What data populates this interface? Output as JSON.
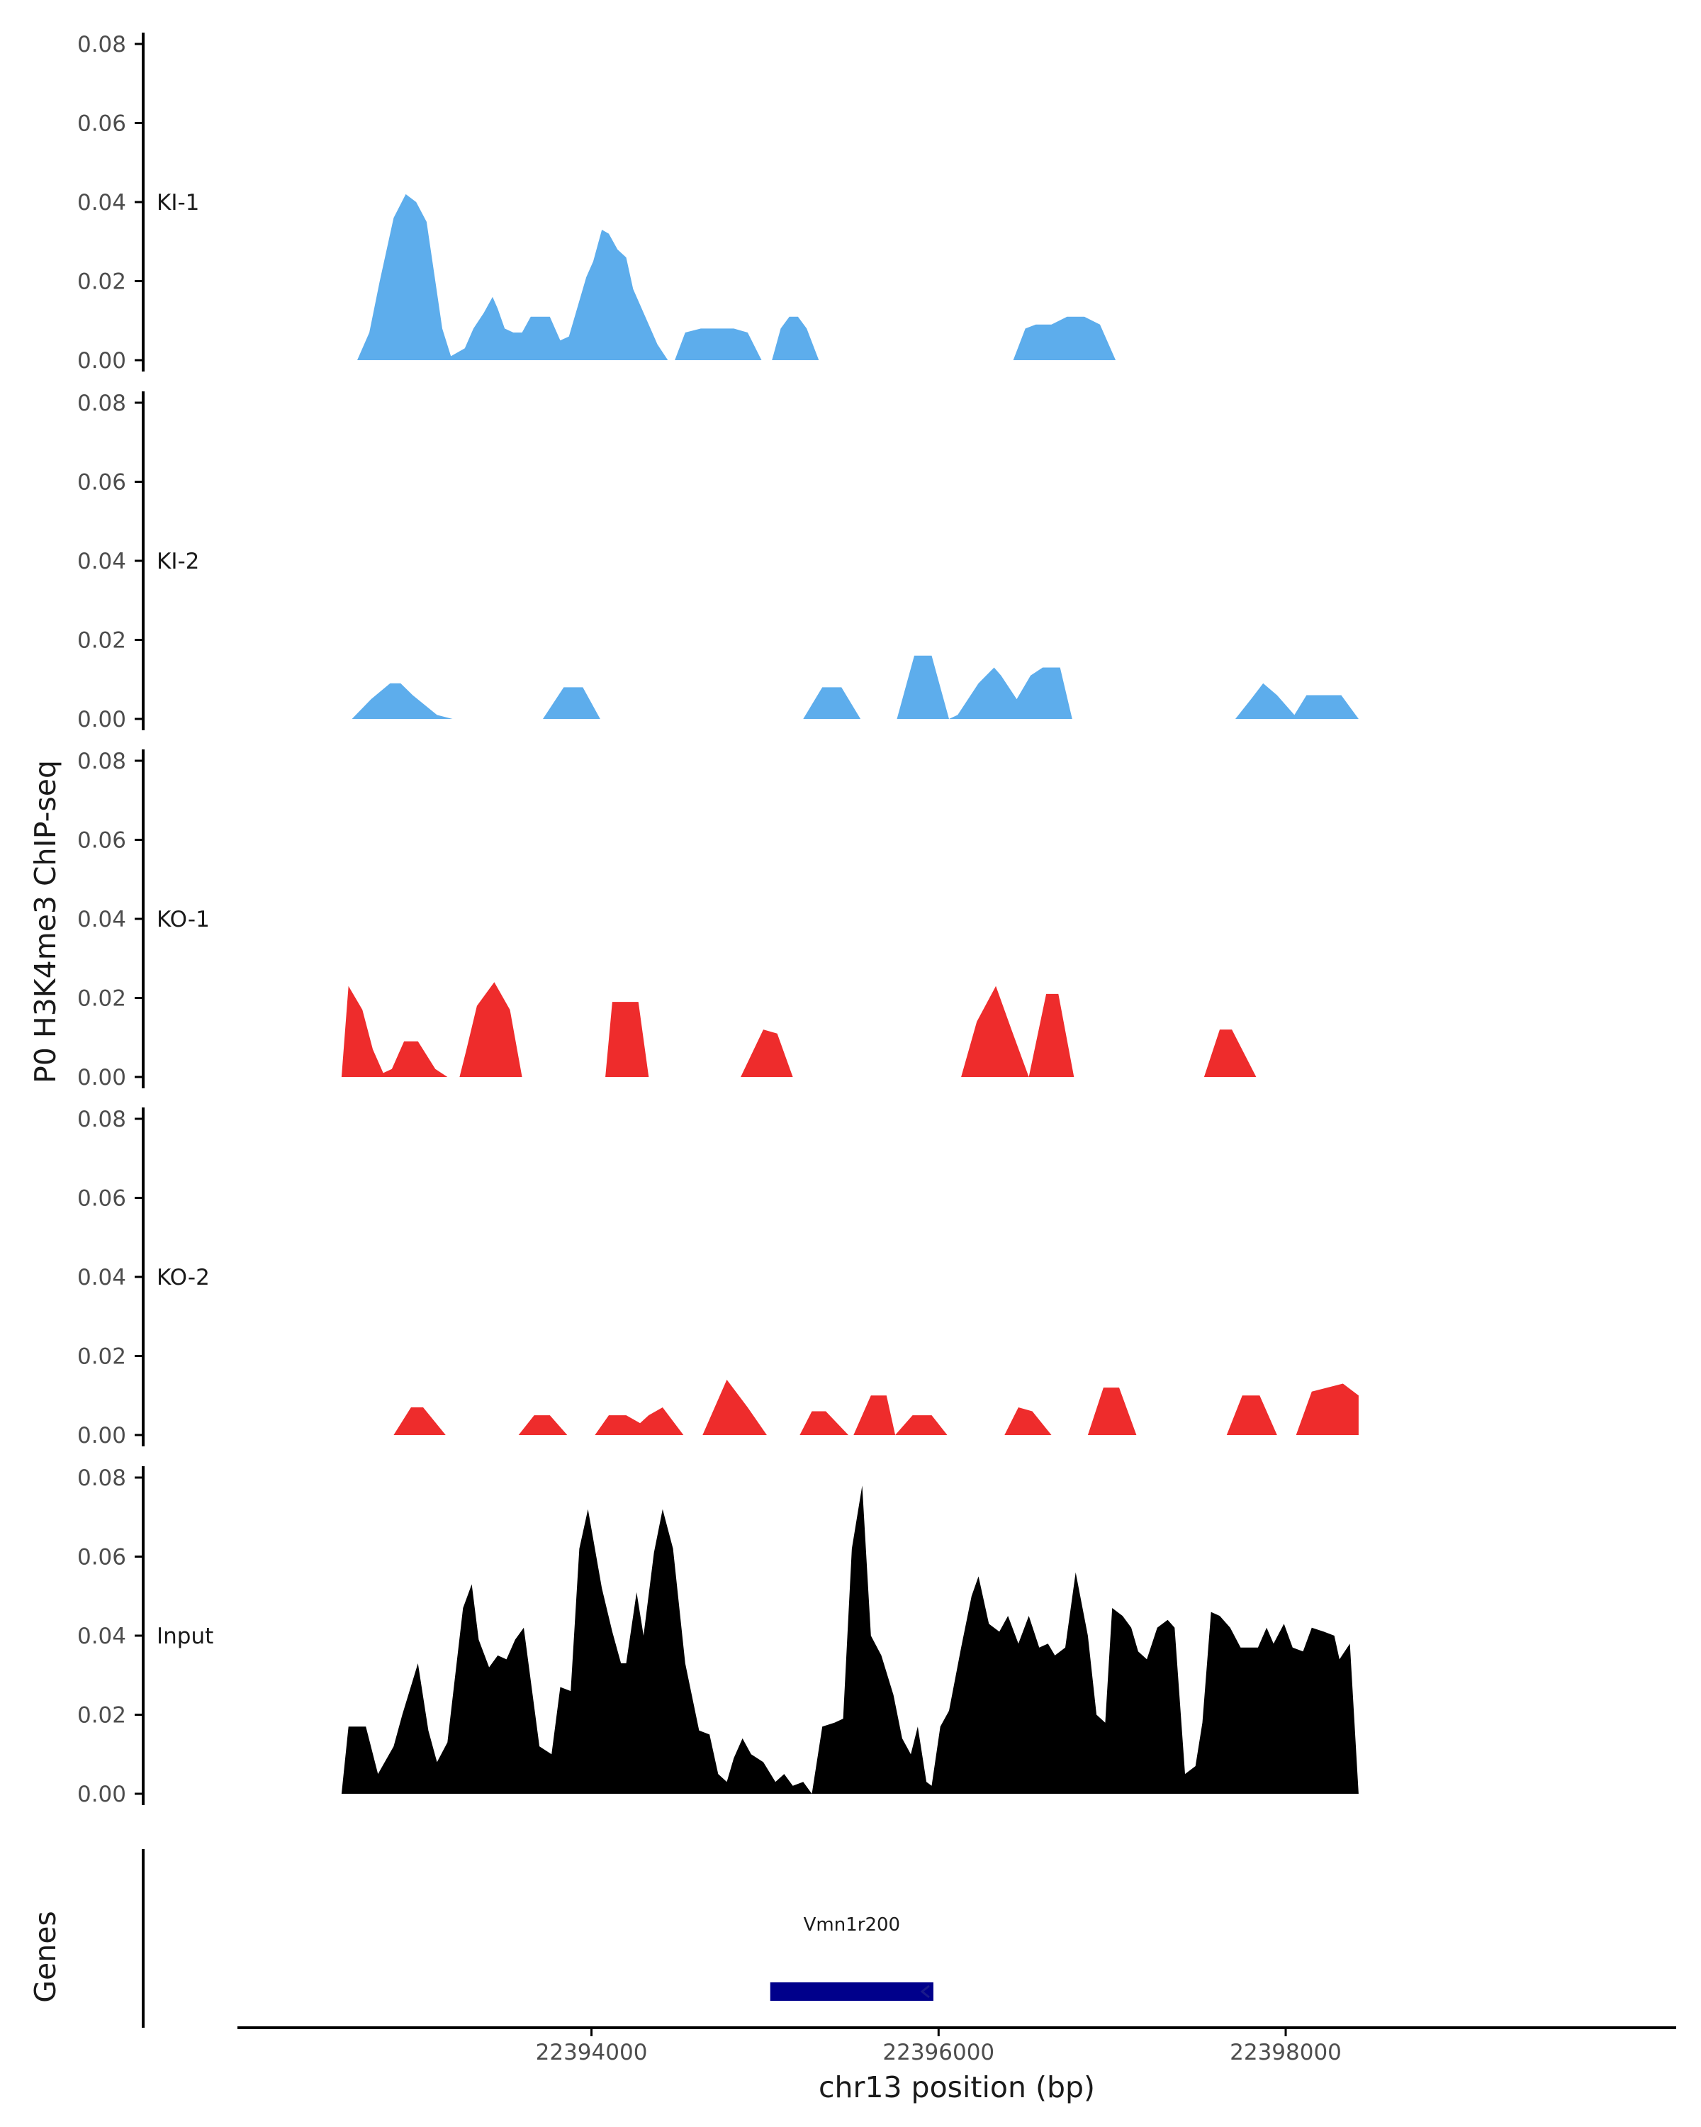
{
  "chart_data": {
    "type": "area",
    "ylabel": "P0 H3K4me3 ChIP-seq",
    "xlabel": "chr13 position (bp)",
    "xlim": [
      22391960,
      22400250
    ],
    "ylim": [
      0,
      0.08
    ],
    "yticks": [
      {
        "value": 0.0,
        "label": "0.00"
      },
      {
        "value": 0.02,
        "label": "0.02"
      },
      {
        "value": 0.04,
        "label": "0.04"
      },
      {
        "value": 0.06,
        "label": "0.06"
      },
      {
        "value": 0.08,
        "label": "0.08"
      }
    ],
    "xticks": [
      {
        "value": 22394000,
        "label": "22394000"
      },
      {
        "value": 22396000,
        "label": "22396000"
      },
      {
        "value": 22398000,
        "label": "22398000"
      }
    ],
    "colors": {
      "KI": "#5DADEC",
      "KO": "#EE2C2C",
      "Input": "#000000",
      "gene": "#00008B",
      "axis": "#000000"
    },
    "series": [
      {
        "name": "KI-1",
        "color": "#5DADEC",
        "x": [
          22392650,
          22392720,
          22392780,
          22392860,
          22392930,
          22392990,
          22393050,
          22393100,
          22393140,
          22393190,
          22393270,
          22393320,
          22393380,
          22393430,
          22393460,
          22393500,
          22393550,
          22393600,
          22393650,
          22393690,
          22393760,
          22393820,
          22393870,
          22393910,
          22393970,
          22394010,
          22394060,
          22394100,
          22394150,
          22394200,
          22394240,
          22394320,
          22394380,
          22394440,
          22394480,
          22394540,
          22394630,
          22394730,
          22394820,
          22394900,
          22394980,
          22395040,
          22395090,
          22395140,
          22395190,
          22395240,
          22395310,
          22395390,
          22396430,
          22396500,
          22396560,
          22396650,
          22396740,
          22396840,
          22396930,
          22397020
        ],
        "y": [
          0.0,
          0.007,
          0.02,
          0.036,
          0.042,
          0.04,
          0.035,
          0.02,
          0.008,
          0.001,
          0.003,
          0.008,
          0.012,
          0.016,
          0.013,
          0.008,
          0.007,
          0.007,
          0.011,
          0.011,
          0.011,
          0.005,
          0.006,
          0.012,
          0.021,
          0.025,
          0.033,
          0.032,
          0.028,
          0.026,
          0.018,
          0.01,
          0.004,
          0.0,
          0.0,
          0.007,
          0.008,
          0.008,
          0.008,
          0.007,
          0.0,
          0.0,
          0.008,
          0.011,
          0.011,
          0.008,
          0.0,
          0.0,
          0.0,
          0.008,
          0.009,
          0.009,
          0.011,
          0.011,
          0.009,
          0.0
        ]
      },
      {
        "name": "KI-2",
        "color": "#5DADEC",
        "x": [
          22392620,
          22392730,
          22392840,
          22392900,
          22392970,
          22393110,
          22393200,
          22393720,
          22393840,
          22393950,
          22394050,
          22395220,
          22395330,
          22395440,
          22395550,
          22395760,
          22395860,
          22395960,
          22396060,
          22396110,
          22396230,
          22396320,
          22396360,
          22396450,
          22396530,
          22396600,
          22396700,
          22396770,
          22397710,
          22397800,
          22397870,
          22397950,
          22398050,
          22398120,
          22398220,
          22398320,
          22398420
        ],
        "y": [
          0.0,
          0.005,
          0.009,
          0.009,
          0.006,
          0.001,
          0.0,
          0.0,
          0.008,
          0.008,
          0.0,
          0.0,
          0.008,
          0.008,
          0.0,
          0.0,
          0.016,
          0.016,
          0.0,
          0.001,
          0.009,
          0.013,
          0.011,
          0.005,
          0.011,
          0.013,
          0.013,
          0.0,
          0.0,
          0.005,
          0.009,
          0.006,
          0.001,
          0.006,
          0.006,
          0.006,
          0.0
        ]
      },
      {
        "name": "KO-1",
        "color": "#EE2C2C",
        "x": [
          22392560,
          22392600,
          22392680,
          22392740,
          22392800,
          22392850,
          22392920,
          22393000,
          22393100,
          22393170,
          22393240,
          22393280,
          22393340,
          22393440,
          22393530,
          22393600,
          22394080,
          22394120,
          22394270,
          22394330,
          22394860,
          22394990,
          22395070,
          22395160,
          22396130,
          22396220,
          22396330,
          22396420,
          22396520,
          22396620,
          22396690,
          22396780,
          22397530,
          22397620,
          22397690,
          22397830
        ],
        "y": [
          0.0,
          0.023,
          0.017,
          0.007,
          0.001,
          0.002,
          0.009,
          0.009,
          0.002,
          0.0,
          0.0,
          0.007,
          0.018,
          0.024,
          0.017,
          0.0,
          0.0,
          0.019,
          0.019,
          0.0,
          0.0,
          0.012,
          0.011,
          0.0,
          0.0,
          0.014,
          0.023,
          0.012,
          0.0,
          0.021,
          0.021,
          0.0,
          0.0,
          0.012,
          0.012,
          0.0
        ]
      },
      {
        "name": "KO-2",
        "color": "#EE2C2C",
        "x": [
          22392860,
          22392960,
          22393030,
          22393160,
          22393580,
          22393670,
          22393760,
          22393860,
          22394020,
          22394100,
          22394200,
          22394280,
          22394330,
          22394410,
          22394530,
          22394640,
          22394780,
          22394900,
          22395010,
          22395200,
          22395270,
          22395350,
          22395480,
          22395510,
          22395610,
          22395700,
          22395750,
          22395850,
          22395960,
          22396050,
          22396380,
          22396460,
          22396540,
          22396650,
          22396860,
          22396950,
          22397040,
          22397140,
          22397660,
          22397750,
          22397850,
          22397950,
          22398060,
          22398150,
          22398240,
          22398330,
          22398420
        ],
        "y": [
          0.0,
          0.007,
          0.007,
          0.0,
          0.0,
          0.005,
          0.005,
          0.0,
          0.0,
          0.005,
          0.005,
          0.003,
          0.005,
          0.007,
          0.0,
          0.0,
          0.014,
          0.007,
          0.0,
          0.0,
          0.006,
          0.006,
          0.0,
          0.0,
          0.01,
          0.01,
          0.0,
          0.005,
          0.005,
          0.0,
          0.0,
          0.007,
          0.006,
          0.0,
          0.0,
          0.012,
          0.012,
          0.0,
          0.0,
          0.01,
          0.01,
          0.0,
          0.0,
          0.011,
          0.012,
          0.013,
          0.01
        ]
      },
      {
        "name": "Input",
        "color": "#000000",
        "x": [
          22392560,
          22392600,
          22392700,
          22392770,
          22392860,
          22392910,
          22393000,
          22393060,
          22393110,
          22393170,
          22393260,
          22393310,
          22393350,
          22393410,
          22393460,
          22393510,
          22393560,
          22393610,
          22393700,
          22393770,
          22393820,
          22393880,
          22393930,
          22393980,
          22394060,
          22394120,
          22394170,
          22394200,
          22394260,
          22394300,
          22394360,
          22394410,
          22394470,
          22394540,
          22394620,
          22394680,
          22394730,
          22394780,
          22394820,
          22394870,
          22394920,
          22394990,
          22395060,
          22395110,
          22395160,
          22395220,
          22395270,
          22395330,
          22395400,
          22395450,
          22395500,
          22395560,
          22395610,
          22395670,
          22395740,
          22395790,
          22395840,
          22395880,
          22395930,
          22395960,
          22396010,
          22396060,
          22396130,
          22396190,
          22396230,
          22396290,
          22396350,
          22396400,
          22396460,
          22396520,
          22396580,
          22396630,
          22396670,
          22396730,
          22396790,
          22396860,
          22396910,
          22396960,
          22397000,
          22397060,
          22397110,
          22397150,
          22397200,
          22397260,
          22397320,
          22397360,
          22397420,
          22397480,
          22397520,
          22397570,
          22397620,
          22397680,
          22397740,
          22397780,
          22397840,
          22397890,
          22397930,
          22397990,
          22398040,
          22398100,
          22398150,
          22398220,
          22398280,
          22398310,
          22398370,
          22398420
        ],
        "y": [
          0.0,
          0.017,
          0.017,
          0.005,
          0.012,
          0.02,
          0.033,
          0.016,
          0.008,
          0.013,
          0.047,
          0.053,
          0.039,
          0.032,
          0.035,
          0.034,
          0.039,
          0.042,
          0.012,
          0.01,
          0.027,
          0.026,
          0.062,
          0.072,
          0.052,
          0.041,
          0.033,
          0.033,
          0.051,
          0.04,
          0.061,
          0.072,
          0.062,
          0.033,
          0.016,
          0.015,
          0.005,
          0.003,
          0.009,
          0.014,
          0.01,
          0.008,
          0.003,
          0.005,
          0.002,
          0.003,
          0.0,
          0.017,
          0.018,
          0.019,
          0.062,
          0.078,
          0.04,
          0.035,
          0.025,
          0.014,
          0.01,
          0.017,
          0.003,
          0.002,
          0.017,
          0.021,
          0.037,
          0.05,
          0.055,
          0.043,
          0.041,
          0.045,
          0.038,
          0.045,
          0.037,
          0.038,
          0.035,
          0.037,
          0.056,
          0.04,
          0.02,
          0.018,
          0.047,
          0.045,
          0.042,
          0.036,
          0.034,
          0.042,
          0.044,
          0.042,
          0.005,
          0.007,
          0.018,
          0.046,
          0.045,
          0.042,
          0.037,
          0.037,
          0.037,
          0.042,
          0.038,
          0.043,
          0.037,
          0.036,
          0.042,
          0.041,
          0.04,
          0.034,
          0.038,
          0.0
        ]
      }
    ],
    "genes": [
      {
        "name": "Vmn1r200",
        "start": 22395030,
        "end": 22395970,
        "strand": "-"
      }
    ],
    "gene_track_label": "Genes"
  }
}
